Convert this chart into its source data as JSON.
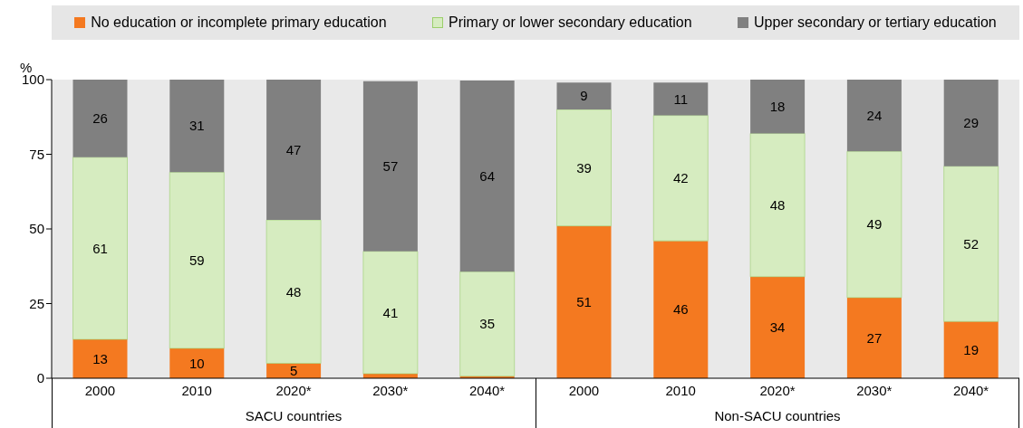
{
  "chart_data": {
    "type": "bar",
    "stacked": true,
    "ylabel": "%",
    "categories": [
      "2000",
      "2010",
      "2020*",
      "2030*",
      "2040*",
      "2000",
      "2010",
      "2020*",
      "2030*",
      "2040*"
    ],
    "series": [
      {
        "name": "No education or incomplete primary education",
        "color": "#f47920",
        "values": [
          13,
          10,
          5,
          1.5,
          0.7,
          51,
          46,
          34,
          27,
          19
        ],
        "value_labels": [
          "13",
          "10",
          "5",
          null,
          null,
          "51",
          "46",
          "34",
          "27",
          "19"
        ]
      },
      {
        "name": "Primary or lower secondary education",
        "color": "#d6ecc0",
        "values": [
          61,
          59,
          48,
          41,
          35,
          39,
          42,
          48,
          49,
          52
        ],
        "value_labels": [
          "61",
          "59",
          "48",
          "41",
          "35",
          "39",
          "42",
          "48",
          "49",
          "52"
        ]
      },
      {
        "name": "Upper secondary or tertiary education",
        "color": "#808080",
        "values": [
          26,
          31,
          47,
          57,
          64,
          9,
          11,
          18,
          24,
          29
        ],
        "value_labels": [
          "26",
          "31",
          "47",
          "57",
          "64",
          "9",
          "11",
          "18",
          "24",
          "29"
        ]
      }
    ],
    "ylim": [
      0,
      100
    ],
    "yticks": [
      0,
      25,
      50,
      75,
      100
    ],
    "legend": "top",
    "annotations": [
      "SACU countries",
      "Non-SACU countries"
    ]
  }
}
